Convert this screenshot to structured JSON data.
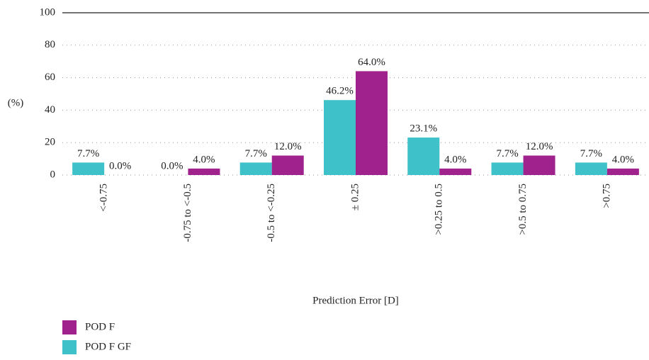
{
  "chart_data": {
    "type": "bar",
    "categories": [
      "<-0.75",
      "-0.75 to <-0.5",
      "-0.5 to <-0.25",
      "± 0.25",
      ">0.25 to 0.5",
      ">0.5 to 0.75",
      ">0.75"
    ],
    "series": [
      {
        "name": "POD F GF",
        "color": "#3fc1c9",
        "values": [
          7.7,
          0,
          7.7,
          46.2,
          23.1,
          7.7,
          7.7
        ],
        "value_labels": [
          "7.7%",
          "0.0%",
          "7.7%",
          "46.2%",
          "23.1%",
          "7.7%",
          "7.7%"
        ]
      },
      {
        "name": "POD F",
        "color": "#a0228d",
        "values": [
          0,
          4,
          12,
          64,
          4,
          12,
          4
        ],
        "value_labels": [
          "0.0%",
          "4.0%",
          "12.0%",
          "64.0%",
          "4.0%",
          "12.0%",
          "4.0%"
        ]
      }
    ],
    "ylabel": "(%)",
    "xlabel": "Prediction Error [D]",
    "ylim": [
      0,
      100
    ],
    "yticks": [
      0,
      20,
      40,
      60,
      80,
      100
    ],
    "grid": true
  }
}
